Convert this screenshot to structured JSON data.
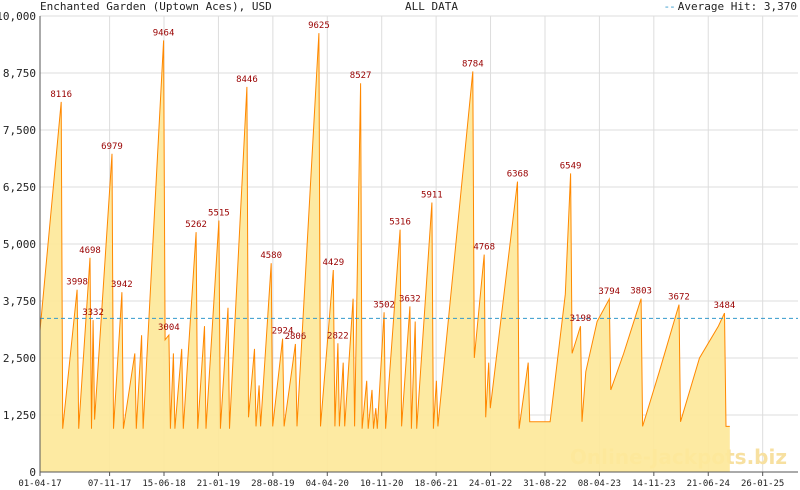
{
  "header": {
    "title": "Enchanted Garden (Uptown Aces), USD",
    "range": "ALL DATA",
    "average_label": "Average Hit: 3,370"
  },
  "watermark": "Online-Jackpots.biz",
  "colors": {
    "fill": "#fde89a",
    "line": "#ff8800",
    "average": "#3399cc",
    "peak_label": "#990000",
    "grid": "#dddddd"
  },
  "chart_data": {
    "type": "area",
    "title": "Enchanted Garden (Uptown Aces), USD",
    "ylim": [
      0,
      10000
    ],
    "yticks": [
      0,
      1250,
      2500,
      3750,
      5000,
      6250,
      7500,
      8750,
      10000
    ],
    "ytick_labels": [
      "0",
      "1,250",
      "2,500",
      "3,750",
      "5,000",
      "6,250",
      "7,500",
      "8,750",
      "10,000"
    ],
    "xlim": [
      0,
      100
    ],
    "xticks": [
      {
        "x": 0,
        "label": "01-04-17"
      },
      {
        "x": 9.18,
        "label": "07-11-17"
      },
      {
        "x": 16.36,
        "label": "15-06-18"
      },
      {
        "x": 23.54,
        "label": "21-01-19"
      },
      {
        "x": 30.72,
        "label": "28-08-19"
      },
      {
        "x": 37.9,
        "label": "04-04-20"
      },
      {
        "x": 45.08,
        "label": "10-11-20"
      },
      {
        "x": 52.26,
        "label": "18-06-21"
      },
      {
        "x": 59.44,
        "label": "24-01-22"
      },
      {
        "x": 66.62,
        "label": "31-08-22"
      },
      {
        "x": 73.8,
        "label": "08-04-23"
      },
      {
        "x": 80.98,
        "label": "14-11-23"
      },
      {
        "x": 88.16,
        "label": "21-06-24"
      },
      {
        "x": 95.34,
        "label": "26-01-25"
      }
    ],
    "average": 3370,
    "series": [
      {
        "values": [
          [
            0,
            3100
          ],
          [
            2.8,
            8116
          ],
          [
            3.0,
            950
          ],
          [
            4.9,
            3998
          ],
          [
            5.1,
            950
          ],
          [
            6.6,
            4698
          ],
          [
            6.8,
            950
          ],
          [
            7.0,
            3332
          ],
          [
            7.2,
            1150
          ],
          [
            9.5,
            6979
          ],
          [
            9.7,
            950
          ],
          [
            10.8,
            3942
          ],
          [
            11.0,
            950
          ],
          [
            12.5,
            2600
          ],
          [
            12.7,
            950
          ],
          [
            13.4,
            3000
          ],
          [
            13.6,
            950
          ],
          [
            16.3,
            9464
          ],
          [
            16.5,
            2900
          ],
          [
            17.0,
            3004
          ],
          [
            17.2,
            950
          ],
          [
            17.6,
            2600
          ],
          [
            17.8,
            950
          ],
          [
            18.7,
            2700
          ],
          [
            18.9,
            950
          ],
          [
            20.6,
            5262
          ],
          [
            20.8,
            950
          ],
          [
            21.7,
            3200
          ],
          [
            21.9,
            950
          ],
          [
            23.6,
            5515
          ],
          [
            23.8,
            950
          ],
          [
            24.8,
            3600
          ],
          [
            25.0,
            950
          ],
          [
            27.3,
            8446
          ],
          [
            27.5,
            1200
          ],
          [
            28.3,
            2700
          ],
          [
            28.5,
            1000
          ],
          [
            28.9,
            1900
          ],
          [
            29.1,
            1000
          ],
          [
            30.5,
            4580
          ],
          [
            30.7,
            1000
          ],
          [
            32.0,
            2924
          ],
          [
            32.2,
            1000
          ],
          [
            33.7,
            2806
          ],
          [
            33.9,
            1000
          ],
          [
            36.8,
            9625
          ],
          [
            37.0,
            1000
          ],
          [
            38.7,
            4429
          ],
          [
            38.9,
            1000
          ],
          [
            39.3,
            2822
          ],
          [
            39.5,
            1000
          ],
          [
            40.0,
            2400
          ],
          [
            40.2,
            1000
          ],
          [
            41.3,
            3800
          ],
          [
            41.5,
            1000
          ],
          [
            42.3,
            8527
          ],
          [
            42.5,
            950
          ],
          [
            43.1,
            2000
          ],
          [
            43.3,
            950
          ],
          [
            43.8,
            1800
          ],
          [
            44.0,
            950
          ],
          [
            44.3,
            1400
          ],
          [
            44.5,
            950
          ],
          [
            45.4,
            3502
          ],
          [
            45.6,
            950
          ],
          [
            47.5,
            5316
          ],
          [
            47.7,
            1000
          ],
          [
            48.8,
            3632
          ],
          [
            49.0,
            950
          ],
          [
            49.5,
            3300
          ],
          [
            49.7,
            950
          ],
          [
            51.7,
            5911
          ],
          [
            51.9,
            950
          ],
          [
            52.3,
            2000
          ],
          [
            52.5,
            1000
          ],
          [
            57.1,
            8784
          ],
          [
            57.3,
            2500
          ],
          [
            58.6,
            4768
          ],
          [
            58.8,
            1200
          ],
          [
            59.2,
            2400
          ],
          [
            59.4,
            1400
          ],
          [
            63.0,
            6368
          ],
          [
            63.2,
            950
          ],
          [
            64.4,
            2400
          ],
          [
            64.6,
            1100
          ],
          [
            65.8,
            1100
          ],
          [
            67.3,
            1100
          ],
          [
            69.3,
            3900
          ],
          [
            70.0,
            6549
          ],
          [
            70.2,
            2600
          ],
          [
            71.3,
            3198
          ],
          [
            71.5,
            1100
          ],
          [
            72.0,
            2200
          ],
          [
            73.5,
            3300
          ],
          [
            75.1,
            3794
          ],
          [
            75.3,
            1800
          ],
          [
            77.0,
            2600
          ],
          [
            79.3,
            3803
          ],
          [
            79.5,
            1000
          ],
          [
            81.7,
            2200
          ],
          [
            84.3,
            3672
          ],
          [
            84.5,
            1100
          ],
          [
            87.0,
            2500
          ],
          [
            89.5,
            3200
          ],
          [
            90.3,
            3484
          ],
          [
            90.5,
            1000
          ],
          [
            91.0,
            1000
          ]
        ]
      }
    ],
    "peak_labels": [
      {
        "x": 2.8,
        "y": 8116,
        "text": "8116"
      },
      {
        "x": 4.9,
        "y": 3998,
        "text": "3998"
      },
      {
        "x": 6.6,
        "y": 4698,
        "text": "4698"
      },
      {
        "x": 7.0,
        "y": 3332,
        "text": "3332"
      },
      {
        "x": 9.5,
        "y": 6979,
        "text": "6979"
      },
      {
        "x": 10.8,
        "y": 3942,
        "text": "3942"
      },
      {
        "x": 16.3,
        "y": 9464,
        "text": "9464"
      },
      {
        "x": 17.0,
        "y": 3004,
        "text": "3004"
      },
      {
        "x": 20.6,
        "y": 5262,
        "text": "5262"
      },
      {
        "x": 23.6,
        "y": 5515,
        "text": "5515"
      },
      {
        "x": 27.3,
        "y": 8446,
        "text": "8446"
      },
      {
        "x": 30.5,
        "y": 4580,
        "text": "4580"
      },
      {
        "x": 32.0,
        "y": 2924,
        "text": "2924"
      },
      {
        "x": 33.7,
        "y": 2806,
        "text": "2806"
      },
      {
        "x": 36.8,
        "y": 9625,
        "text": "9625"
      },
      {
        "x": 38.7,
        "y": 4429,
        "text": "4429"
      },
      {
        "x": 39.3,
        "y": 2822,
        "text": "2822"
      },
      {
        "x": 42.3,
        "y": 8527,
        "text": "8527"
      },
      {
        "x": 45.4,
        "y": 3502,
        "text": "3502"
      },
      {
        "x": 47.5,
        "y": 5316,
        "text": "5316"
      },
      {
        "x": 48.8,
        "y": 3632,
        "text": "3632"
      },
      {
        "x": 51.7,
        "y": 5911,
        "text": "5911"
      },
      {
        "x": 57.1,
        "y": 8784,
        "text": "8784"
      },
      {
        "x": 58.6,
        "y": 4768,
        "text": "4768"
      },
      {
        "x": 63.0,
        "y": 6368,
        "text": "6368"
      },
      {
        "x": 70.0,
        "y": 6549,
        "text": "6549"
      },
      {
        "x": 71.3,
        "y": 3198,
        "text": "3198"
      },
      {
        "x": 75.1,
        "y": 3794,
        "text": "3794"
      },
      {
        "x": 79.3,
        "y": 3803,
        "text": "3803"
      },
      {
        "x": 84.3,
        "y": 3672,
        "text": "3672"
      },
      {
        "x": 90.3,
        "y": 3484,
        "text": "3484"
      }
    ]
  }
}
